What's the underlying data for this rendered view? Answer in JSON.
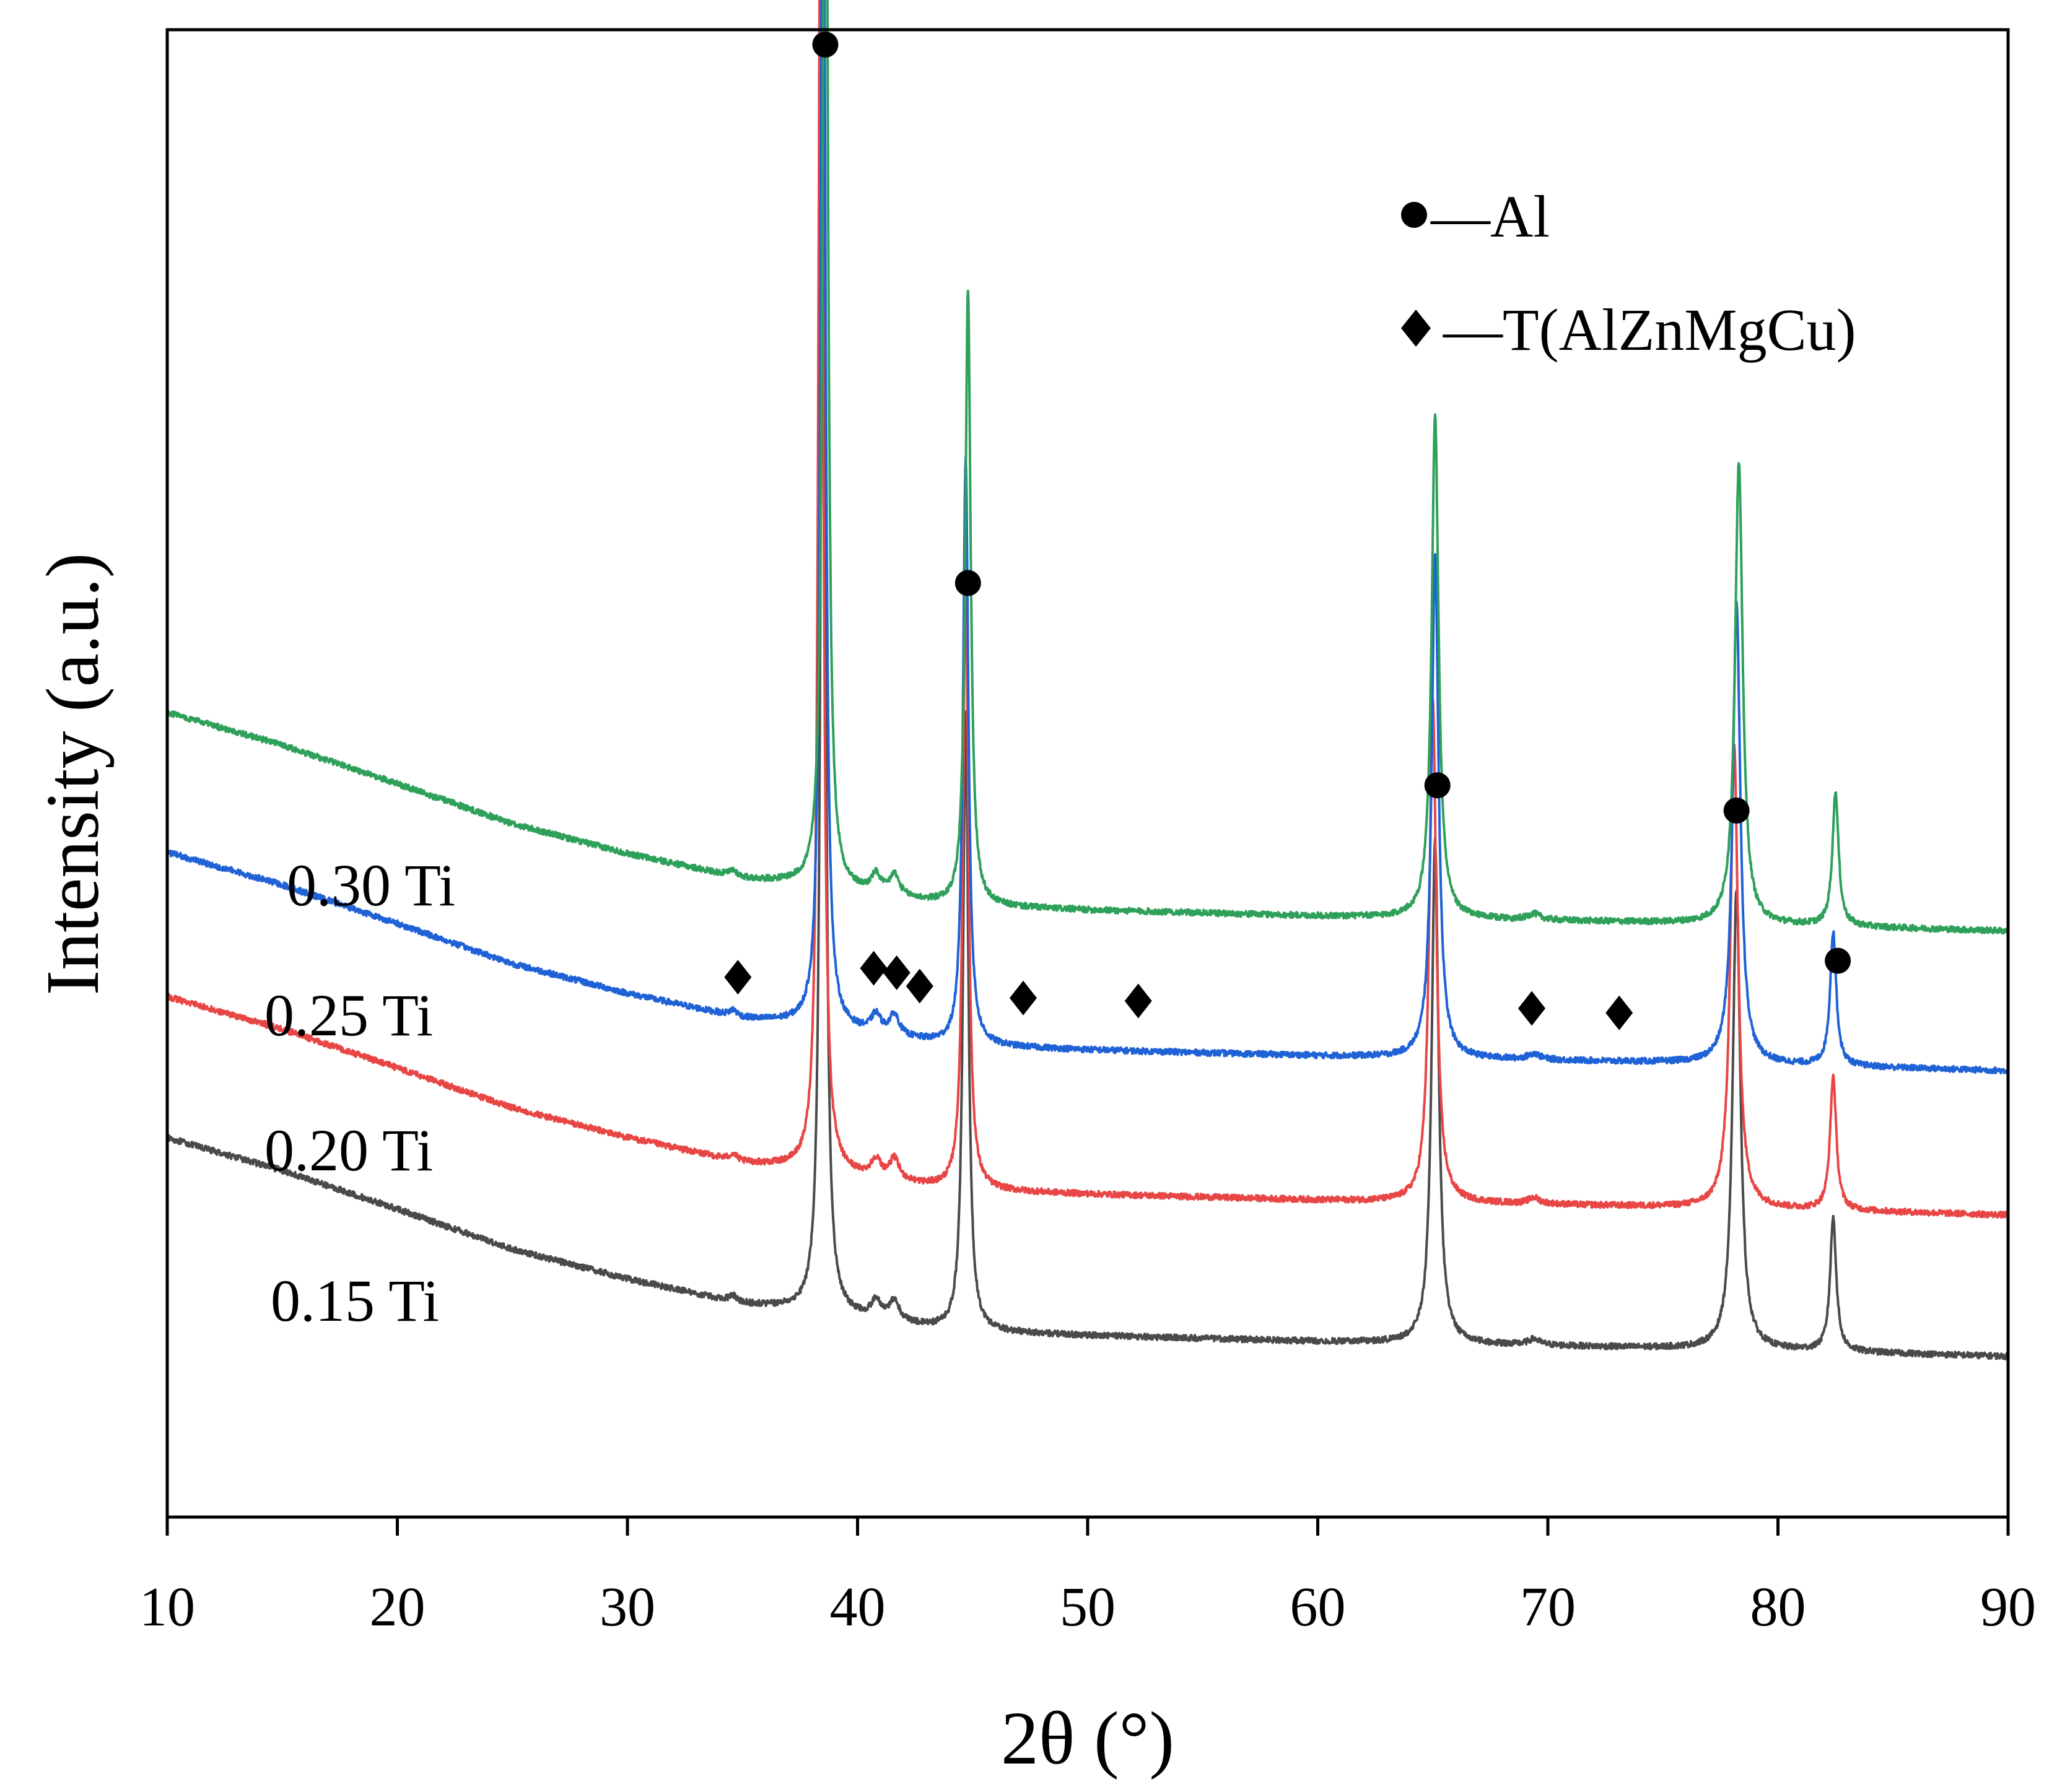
{
  "chart_data": {
    "type": "line",
    "title": "",
    "xlabel": "2θ (°)",
    "ylabel": "Intensity (a.u.)",
    "xlim": [
      10,
      90
    ],
    "ylim": [
      0,
      1
    ],
    "x_ticks": [
      "10",
      "20",
      "30",
      "40",
      "50",
      "60",
      "70",
      "80",
      "90"
    ],
    "y_ticks": [],
    "grid": false,
    "legend": {
      "placement": "top-right",
      "entries": [
        {
          "marker": "circle",
          "label": "—Al"
        },
        {
          "marker": "diamond",
          "label": "—T(AlZnMgCu)"
        }
      ]
    },
    "series": [
      {
        "name": "0.15 Ti",
        "color": "#4a4a4a",
        "offset": 0.0,
        "background": [
          [
            10,
            0.255
          ],
          [
            15,
            0.233
          ],
          [
            20,
            0.207
          ],
          [
            25,
            0.18
          ],
          [
            30,
            0.16
          ],
          [
            35,
            0.143
          ],
          [
            37,
            0.14
          ],
          [
            44,
            0.125
          ],
          [
            50,
            0.122
          ],
          [
            60,
            0.118
          ],
          [
            70,
            0.115
          ],
          [
            80,
            0.112
          ],
          [
            90,
            0.108
          ]
        ],
        "peaks": [
          [
            38.5,
            0.92,
            0.12
          ],
          [
            44.7,
            0.415,
            0.14
          ],
          [
            65.1,
            0.338,
            0.18
          ],
          [
            78.2,
            0.31,
            0.2
          ],
          [
            82.4,
            0.09,
            0.16
          ]
        ]
      },
      {
        "name": "0.20 Ti",
        "color": "#e84545",
        "offset": 0.095,
        "background": [
          [
            10,
            0.255
          ],
          [
            15,
            0.233
          ],
          [
            20,
            0.207
          ],
          [
            25,
            0.18
          ],
          [
            30,
            0.16
          ],
          [
            35,
            0.143
          ],
          [
            37,
            0.14
          ],
          [
            44,
            0.125
          ],
          [
            50,
            0.122
          ],
          [
            60,
            0.118
          ],
          [
            70,
            0.115
          ],
          [
            80,
            0.112
          ],
          [
            90,
            0.108
          ]
        ],
        "peaks": [
          [
            38.4,
            0.96,
            0.12
          ],
          [
            44.7,
            0.415,
            0.14
          ],
          [
            65.0,
            0.338,
            0.18
          ],
          [
            78.1,
            0.31,
            0.2
          ],
          [
            82.4,
            0.09,
            0.16
          ]
        ]
      },
      {
        "name": "0.25 Ti",
        "color": "#1f62d6",
        "offset": 0.192,
        "background": [
          [
            10,
            0.255
          ],
          [
            15,
            0.233
          ],
          [
            20,
            0.207
          ],
          [
            25,
            0.18
          ],
          [
            30,
            0.16
          ],
          [
            35,
            0.143
          ],
          [
            37,
            0.14
          ],
          [
            44,
            0.125
          ],
          [
            50,
            0.122
          ],
          [
            60,
            0.118
          ],
          [
            70,
            0.115
          ],
          [
            80,
            0.112
          ],
          [
            90,
            0.108
          ]
        ],
        "peaks": [
          [
            38.5,
            0.93,
            0.12
          ],
          [
            44.7,
            0.395,
            0.14
          ],
          [
            65.1,
            0.338,
            0.18
          ],
          [
            78.2,
            0.31,
            0.2
          ],
          [
            82.4,
            0.09,
            0.16
          ]
        ]
      },
      {
        "name": "0.30 Ti",
        "color": "#2ea05a",
        "offset": 0.286,
        "background": [
          [
            10,
            0.255
          ],
          [
            15,
            0.233
          ],
          [
            20,
            0.207
          ],
          [
            25,
            0.18
          ],
          [
            30,
            0.16
          ],
          [
            35,
            0.143
          ],
          [
            37,
            0.14
          ],
          [
            44,
            0.125
          ],
          [
            50,
            0.122
          ],
          [
            60,
            0.118
          ],
          [
            70,
            0.115
          ],
          [
            80,
            0.112
          ],
          [
            90,
            0.108
          ]
        ],
        "peaks": [
          [
            38.6,
            0.955,
            0.12
          ],
          [
            44.8,
            0.415,
            0.14
          ],
          [
            65.1,
            0.338,
            0.18
          ],
          [
            78.3,
            0.31,
            0.2
          ],
          [
            82.5,
            0.09,
            0.16
          ]
        ]
      }
    ],
    "small_peaks": [
      [
        40.8,
        0.012,
        0.25
      ],
      [
        41.6,
        0.014,
        0.25
      ],
      [
        34.6,
        0.004,
        0.2
      ],
      [
        69.4,
        0.004,
        0.3
      ]
    ],
    "series_labels": [
      "0.15 Ti",
      "0.20 Ti",
      "0.25 Ti",
      "0.30 Ti"
    ],
    "annotations": {
      "al_markers": [
        {
          "x": 38.6,
          "y": 0.99
        },
        {
          "x": 44.8,
          "y": 0.628
        },
        {
          "x": 65.2,
          "y": 0.492
        },
        {
          "x": 78.2,
          "y": 0.475
        },
        {
          "x": 82.6,
          "y": 0.374
        }
      ],
      "t_markers": [
        {
          "x": 34.8,
          "y": 0.363
        },
        {
          "x": 40.7,
          "y": 0.369
        },
        {
          "x": 41.7,
          "y": 0.366
        },
        {
          "x": 42.7,
          "y": 0.357
        },
        {
          "x": 47.2,
          "y": 0.349
        },
        {
          "x": 52.2,
          "y": 0.347
        },
        {
          "x": 69.3,
          "y": 0.342
        },
        {
          "x": 73.1,
          "y": 0.339
        }
      ]
    }
  }
}
